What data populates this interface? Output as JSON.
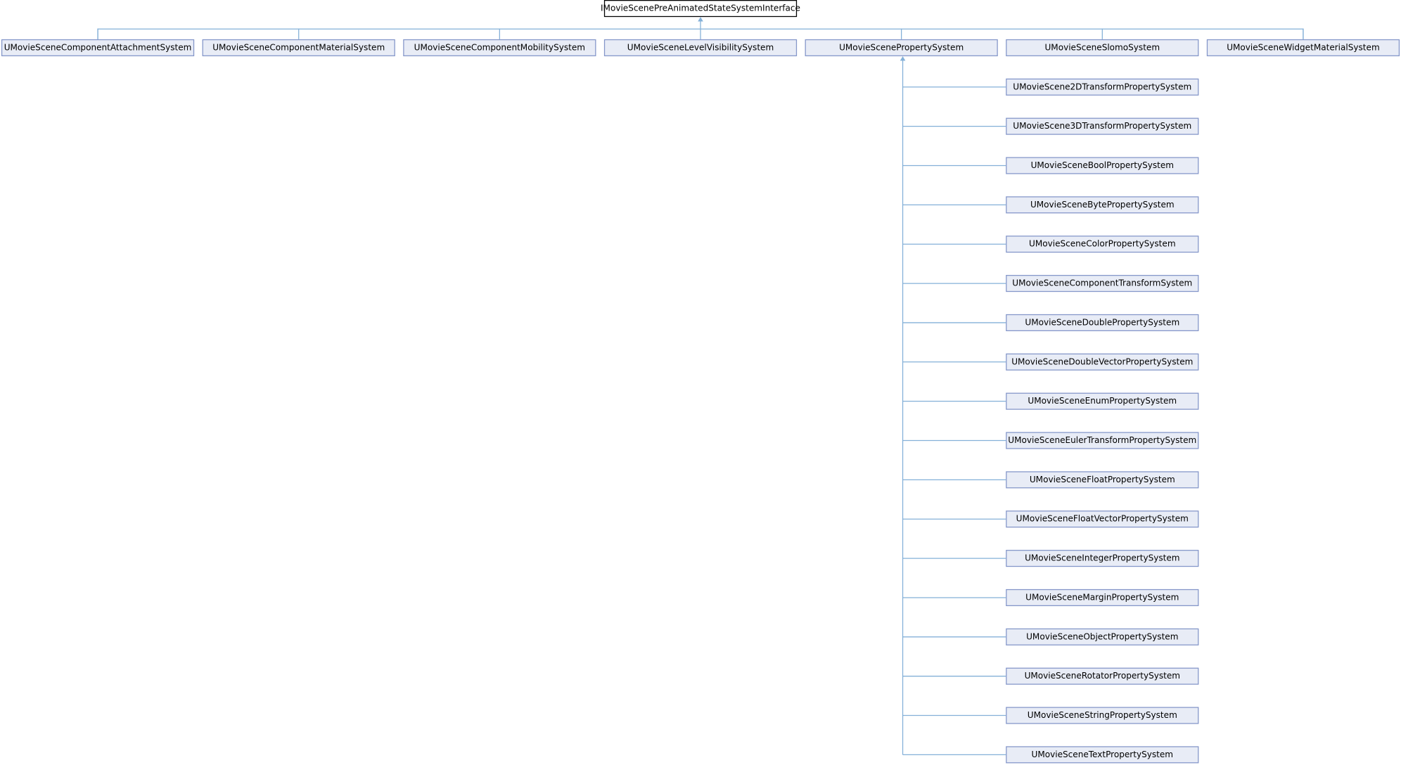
{
  "root": {
    "label": "IMovieScenePreAnimatedStateSystemInterface"
  },
  "level1": [
    {
      "label": "UMovieSceneComponentAttachmentSystem"
    },
    {
      "label": "UMovieSceneComponentMaterialSystem"
    },
    {
      "label": "UMovieSceneComponentMobilitySystem"
    },
    {
      "label": "UMovieSceneLevelVisibilitySystem"
    },
    {
      "label": "UMovieScenePropertySystem"
    },
    {
      "label": "UMovieSceneSlomoSystem"
    },
    {
      "label": "UMovieSceneWidgetMaterialSystem"
    }
  ],
  "property_children": [
    {
      "label": "UMovieScene2DTransformPropertySystem"
    },
    {
      "label": "UMovieScene3DTransformPropertySystem"
    },
    {
      "label": "UMovieSceneBoolPropertySystem"
    },
    {
      "label": "UMovieSceneBytePropertySystem"
    },
    {
      "label": "UMovieSceneColorPropertySystem"
    },
    {
      "label": "UMovieSceneComponentTransformSystem"
    },
    {
      "label": "UMovieSceneDoublePropertySystem"
    },
    {
      "label": "UMovieSceneDoubleVectorPropertySystem"
    },
    {
      "label": "UMovieSceneEnumPropertySystem"
    },
    {
      "label": "UMovieSceneEulerTransformPropertySystem"
    },
    {
      "label": "UMovieSceneFloatPropertySystem"
    },
    {
      "label": "UMovieSceneFloatVectorPropertySystem"
    },
    {
      "label": "UMovieSceneIntegerPropertySystem"
    },
    {
      "label": "UMovieSceneMarginPropertySystem"
    },
    {
      "label": "UMovieSceneObjectPropertySystem"
    },
    {
      "label": "UMovieSceneRotatorPropertySystem"
    },
    {
      "label": "UMovieSceneStringPropertySystem"
    },
    {
      "label": "UMovieSceneTextPropertySystem"
    }
  ]
}
